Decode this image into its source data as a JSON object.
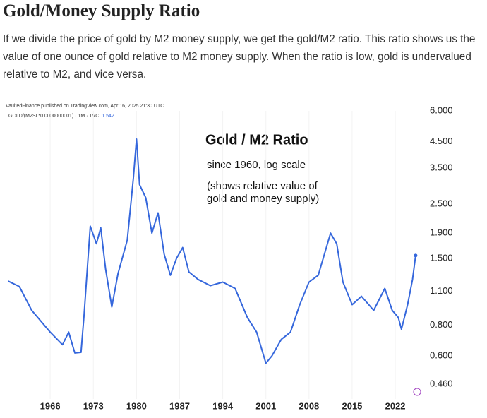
{
  "header": {
    "title": "Gold/Money Supply Ratio",
    "paragraph": "If we divide the price of gold by M2 money supply, we get the gold/M2 ratio. This ratio shows us the value of one ounce of gold relative to M2 money supply. When the ratio is low, gold is undervalued relative to M2, and vice versa."
  },
  "chart_data": {
    "type": "line",
    "source": "VaultedFinance published on TradingView.com, Apr 16, 2025 21:30 UTC",
    "title": "Gold / M2 Ratio",
    "subtitle": "since 1960, log scale",
    "annotations": [
      "(shows relative value of",
      "gold and money supply)"
    ],
    "yscale": "log",
    "x": [
      1959.2,
      1961,
      1963,
      1966,
      1968,
      1969,
      1970,
      1971,
      1971.5,
      1972.5,
      1973.5,
      1974.2,
      1975,
      1976,
      1977,
      1978.5,
      1979.5,
      1980,
      1980.5,
      1981.5,
      1982.5,
      1983.5,
      1984.5,
      1985.5,
      1986.5,
      1987.5,
      1988.5,
      1990,
      1992,
      1994,
      1996,
      1998,
      1999.5,
      2001,
      2002,
      2003.5,
      2005,
      2006.5,
      2008,
      2009.5,
      2011.5,
      2012.5,
      2013.5,
      2015,
      2016.5,
      2018.5,
      2020.3,
      2021.5,
      2022.5,
      2023,
      2024,
      2024.8,
      2025.3
    ],
    "series": [
      {
        "name": "GOLD/(M2SL*0.0000000001) · 1M · TVC",
        "last_value": 1.542,
        "color": "#3567dc",
        "values": [
          1.21,
          1.15,
          0.92,
          0.75,
          0.666,
          0.75,
          0.616,
          0.62,
          0.88,
          2.03,
          1.72,
          2.0,
          1.35,
          0.95,
          1.3,
          1.78,
          3.2,
          4.6,
          3.0,
          2.65,
          1.9,
          2.3,
          1.56,
          1.28,
          1.5,
          1.66,
          1.32,
          1.23,
          1.16,
          1.2,
          1.13,
          0.86,
          0.75,
          0.56,
          0.6,
          0.7,
          0.75,
          0.97,
          1.2,
          1.28,
          1.9,
          1.72,
          1.2,
          0.97,
          1.05,
          0.92,
          1.13,
          0.92,
          0.86,
          0.77,
          0.97,
          1.23,
          1.54
        ]
      }
    ],
    "xlim": [
      1959,
      2026
    ],
    "xticks": [
      1966,
      1973,
      1980,
      1987,
      1994,
      2001,
      2008,
      2015,
      2022
    ],
    "ylim": [
      0.4,
      6.0
    ],
    "yticks": [
      {
        "value": 0.46,
        "label": "0.460"
      },
      {
        "value": 0.6,
        "label": "0.600"
      },
      {
        "value": 0.8,
        "label": "0.800"
      },
      {
        "value": 1.1,
        "label": "1.100"
      },
      {
        "value": 1.5,
        "label": "1.500"
      },
      {
        "value": 1.9,
        "label": "1.900"
      },
      {
        "value": 2.5,
        "label": "2.500"
      },
      {
        "value": 3.5,
        "label": "3.500"
      },
      {
        "value": 4.5,
        "label": "4.500"
      },
      {
        "value": 6.0,
        "label": "6.000"
      }
    ]
  }
}
